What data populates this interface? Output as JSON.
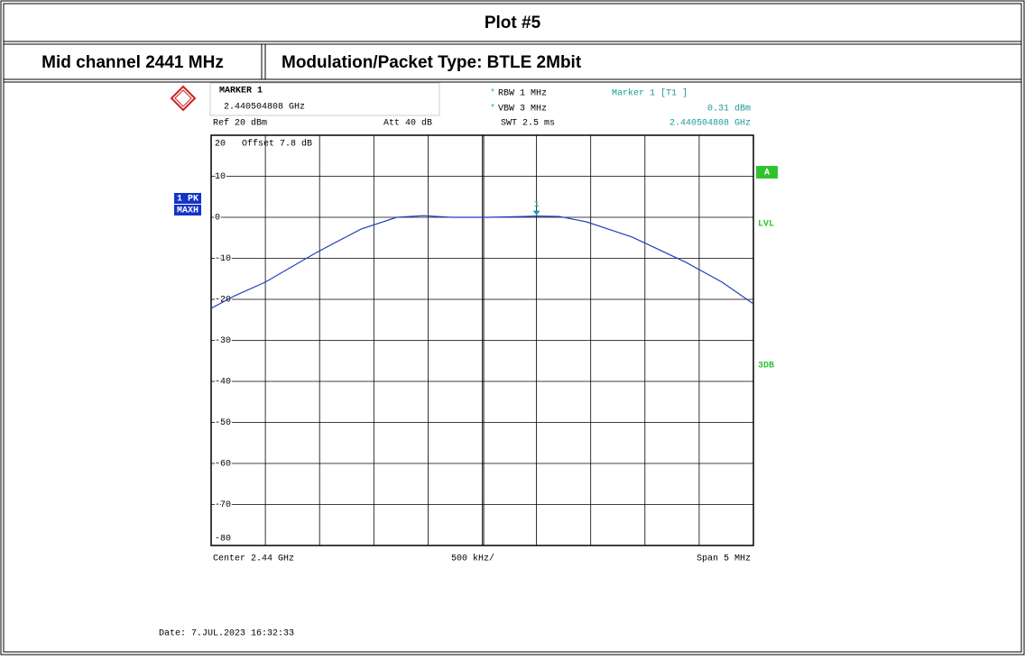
{
  "header": {
    "title": "Plot #5",
    "channel": "Mid channel 2441 MHz",
    "modulation": "Modulation/Packet Type: BTLE 2Mbit"
  },
  "chart_data": {
    "type": "line",
    "marker_title": "MARKER 1",
    "marker_freq": "2.440504808 GHz",
    "ref": "Ref  20 dBm",
    "att": "Att  40 dB",
    "flags": [
      "*",
      "*"
    ],
    "rbw": "RBW 1 MHz",
    "vbw": "VBW 3 MHz",
    "swt": "SWT 2.5 ms",
    "marker_info": "Marker 1 [T1 ]",
    "marker_level": "0.31 dBm",
    "marker_info_freq": "2.440504808 GHz",
    "offset": "Offset  7.8 dB",
    "trace_labels": [
      "1 PK",
      "MAXH"
    ],
    "side_labels": [
      "A",
      "LVL",
      "3DB"
    ],
    "marker_number": "1",
    "center": "Center 2.44 GHz",
    "div": "500 kHz/",
    "span": "Span 5 MHz",
    "date": "Date: 7.JUL.2023  16:32:33",
    "x": [
      2.4375,
      2.43772,
      2.438,
      2.43847,
      2.43888,
      2.43921,
      2.43946,
      2.43971,
      2.44005,
      2.44038,
      2.4405,
      2.44071,
      2.44096,
      2.44138,
      2.44188,
      2.44221,
      2.4425
    ],
    "series": [
      {
        "name": "1 PK MAXH",
        "color": "#1f3fbf",
        "values": [
          -22.2,
          -19.1,
          -15.8,
          -8.6,
          -2.9,
          0,
          0.4,
          0,
          0,
          0.2,
          0.31,
          0.2,
          -1.1,
          -4.8,
          -11,
          -15.8,
          -21.1
        ]
      }
    ],
    "marker_index": 10,
    "xlim": [
      2.4375,
      2.4425
    ],
    "ylim": [
      -80,
      20
    ],
    "yticks": [
      -80,
      -70,
      -60,
      -50,
      -40,
      -30,
      -20,
      -10,
      0,
      10,
      20
    ],
    "grid": true
  }
}
